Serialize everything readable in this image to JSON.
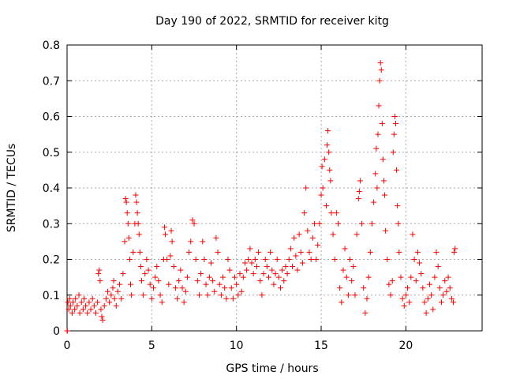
{
  "chart_data": {
    "type": "scatter",
    "title": "Day 190 of 2022, SRMTID for receiver kitg",
    "xlabel": "GPS time / hours",
    "ylabel": "SRMTID / TECUs",
    "xlim": [
      0,
      24.5
    ],
    "ylim": [
      0,
      0.8
    ],
    "xticks": [
      0,
      5,
      10,
      15,
      20
    ],
    "xtick_labels": [
      "0",
      "5",
      "10",
      "15",
      "20"
    ],
    "yticks": [
      0,
      0.1,
      0.2,
      0.3,
      0.4,
      0.5,
      0.6,
      0.7,
      0.8
    ],
    "ytick_labels": [
      "0",
      "0.1",
      "0.2",
      "0.3",
      "0.4",
      "0.5",
      "0.6",
      "0.7",
      "0.8"
    ],
    "grid": true,
    "marker": "+",
    "color": "#ff0000",
    "series": [
      {
        "name": "SRMTID",
        "points": [
          [
            0.0,
            0.0
          ],
          [
            0.02,
            0.0
          ],
          [
            0.05,
            0.08
          ],
          [
            0.1,
            0.06
          ],
          [
            0.15,
            0.09
          ],
          [
            0.2,
            0.07
          ],
          [
            0.3,
            0.05
          ],
          [
            0.35,
            0.08
          ],
          [
            0.45,
            0.06
          ],
          [
            0.5,
            0.09
          ],
          [
            0.6,
            0.07
          ],
          [
            0.7,
            0.1
          ],
          [
            0.75,
            0.05
          ],
          [
            0.85,
            0.08
          ],
          [
            0.95,
            0.06
          ],
          [
            1.0,
            0.09
          ],
          [
            1.1,
            0.07
          ],
          [
            1.2,
            0.05
          ],
          [
            1.3,
            0.08
          ],
          [
            1.4,
            0.06
          ],
          [
            1.5,
            0.09
          ],
          [
            1.6,
            0.07
          ],
          [
            1.7,
            0.05
          ],
          [
            1.8,
            0.08
          ],
          [
            1.85,
            0.16
          ],
          [
            1.9,
            0.17
          ],
          [
            1.95,
            0.14
          ],
          [
            2.0,
            0.06
          ],
          [
            2.05,
            0.04
          ],
          [
            2.1,
            0.03
          ],
          [
            2.2,
            0.07
          ],
          [
            2.3,
            0.09
          ],
          [
            2.4,
            0.11
          ],
          [
            2.5,
            0.08
          ],
          [
            2.6,
            0.1
          ],
          [
            2.7,
            0.12
          ],
          [
            2.75,
            0.14
          ],
          [
            2.8,
            0.09
          ],
          [
            2.9,
            0.07
          ],
          [
            3.0,
            0.11
          ],
          [
            3.1,
            0.13
          ],
          [
            3.2,
            0.09
          ],
          [
            3.3,
            0.16
          ],
          [
            3.4,
            0.25
          ],
          [
            3.45,
            0.37
          ],
          [
            3.5,
            0.36
          ],
          [
            3.55,
            0.33
          ],
          [
            3.6,
            0.3
          ],
          [
            3.65,
            0.26
          ],
          [
            3.7,
            0.2
          ],
          [
            3.75,
            0.13
          ],
          [
            3.8,
            0.1
          ],
          [
            3.9,
            0.22
          ],
          [
            4.0,
            0.3
          ],
          [
            4.05,
            0.38
          ],
          [
            4.1,
            0.36
          ],
          [
            4.15,
            0.33
          ],
          [
            4.2,
            0.3
          ],
          [
            4.25,
            0.27
          ],
          [
            4.3,
            0.22
          ],
          [
            4.35,
            0.18
          ],
          [
            4.4,
            0.14
          ],
          [
            4.5,
            0.1
          ],
          [
            4.6,
            0.16
          ],
          [
            4.7,
            0.2
          ],
          [
            4.8,
            0.17
          ],
          [
            4.9,
            0.13
          ],
          [
            5.0,
            0.09
          ],
          [
            5.1,
            0.12
          ],
          [
            5.2,
            0.15
          ],
          [
            5.3,
            0.18
          ],
          [
            5.4,
            0.14
          ],
          [
            5.5,
            0.1
          ],
          [
            5.6,
            0.08
          ],
          [
            5.7,
            0.2
          ],
          [
            5.75,
            0.29
          ],
          [
            5.8,
            0.27
          ],
          [
            5.9,
            0.2
          ],
          [
            6.0,
            0.13
          ],
          [
            6.1,
            0.21
          ],
          [
            6.15,
            0.28
          ],
          [
            6.2,
            0.25
          ],
          [
            6.3,
            0.18
          ],
          [
            6.4,
            0.12
          ],
          [
            6.5,
            0.09
          ],
          [
            6.6,
            0.14
          ],
          [
            6.7,
            0.17
          ],
          [
            6.8,
            0.12
          ],
          [
            6.9,
            0.08
          ],
          [
            7.0,
            0.11
          ],
          [
            7.1,
            0.15
          ],
          [
            7.2,
            0.22
          ],
          [
            7.3,
            0.25
          ],
          [
            7.4,
            0.31
          ],
          [
            7.5,
            0.3
          ],
          [
            7.6,
            0.2
          ],
          [
            7.7,
            0.14
          ],
          [
            7.8,
            0.1
          ],
          [
            7.9,
            0.16
          ],
          [
            8.0,
            0.25
          ],
          [
            8.1,
            0.2
          ],
          [
            8.2,
            0.13
          ],
          [
            8.3,
            0.1
          ],
          [
            8.4,
            0.15
          ],
          [
            8.5,
            0.19
          ],
          [
            8.6,
            0.14
          ],
          [
            8.7,
            0.11
          ],
          [
            8.8,
            0.26
          ],
          [
            8.9,
            0.22
          ],
          [
            9.0,
            0.13
          ],
          [
            9.1,
            0.1
          ],
          [
            9.2,
            0.15
          ],
          [
            9.3,
            0.12
          ],
          [
            9.4,
            0.09
          ],
          [
            9.5,
            0.2
          ],
          [
            9.6,
            0.17
          ],
          [
            9.7,
            0.12
          ],
          [
            9.8,
            0.09
          ],
          [
            9.9,
            0.15
          ],
          [
            10.0,
            0.13
          ],
          [
            10.1,
            0.1
          ],
          [
            10.2,
            0.16
          ],
          [
            10.3,
            0.11
          ],
          [
            10.4,
            0.15
          ],
          [
            10.5,
            0.19
          ],
          [
            10.6,
            0.17
          ],
          [
            10.7,
            0.2
          ],
          [
            10.8,
            0.23
          ],
          [
            10.9,
            0.19
          ],
          [
            11.0,
            0.16
          ],
          [
            11.1,
            0.2
          ],
          [
            11.2,
            0.18
          ],
          [
            11.3,
            0.22
          ],
          [
            11.4,
            0.14
          ],
          [
            11.5,
            0.1
          ],
          [
            11.6,
            0.16
          ],
          [
            11.7,
            0.2
          ],
          [
            11.8,
            0.18
          ],
          [
            11.9,
            0.15
          ],
          [
            12.0,
            0.22
          ],
          [
            12.1,
            0.17
          ],
          [
            12.2,
            0.13
          ],
          [
            12.3,
            0.16
          ],
          [
            12.4,
            0.2
          ],
          [
            12.5,
            0.15
          ],
          [
            12.6,
            0.12
          ],
          [
            12.7,
            0.17
          ],
          [
            12.8,
            0.14
          ],
          [
            12.9,
            0.18
          ],
          [
            13.0,
            0.16
          ],
          [
            13.1,
            0.2
          ],
          [
            13.2,
            0.23
          ],
          [
            13.3,
            0.18
          ],
          [
            13.4,
            0.26
          ],
          [
            13.5,
            0.21
          ],
          [
            13.6,
            0.17
          ],
          [
            13.7,
            0.27
          ],
          [
            13.8,
            0.22
          ],
          [
            13.9,
            0.19
          ],
          [
            14.0,
            0.33
          ],
          [
            14.1,
            0.4
          ],
          [
            14.2,
            0.28
          ],
          [
            14.3,
            0.22
          ],
          [
            14.4,
            0.2
          ],
          [
            14.5,
            0.26
          ],
          [
            14.6,
            0.3
          ],
          [
            14.7,
            0.2
          ],
          [
            14.8,
            0.24
          ],
          [
            14.9,
            0.3
          ],
          [
            15.0,
            0.38
          ],
          [
            15.05,
            0.46
          ],
          [
            15.1,
            0.4
          ],
          [
            15.2,
            0.48
          ],
          [
            15.3,
            0.35
          ],
          [
            15.35,
            0.52
          ],
          [
            15.4,
            0.56
          ],
          [
            15.45,
            0.5
          ],
          [
            15.5,
            0.45
          ],
          [
            15.55,
            0.42
          ],
          [
            15.6,
            0.33
          ],
          [
            15.7,
            0.27
          ],
          [
            15.8,
            0.2
          ],
          [
            15.9,
            0.33
          ],
          [
            16.0,
            0.3
          ],
          [
            16.1,
            0.12
          ],
          [
            16.2,
            0.08
          ],
          [
            16.3,
            0.17
          ],
          [
            16.4,
            0.23
          ],
          [
            16.5,
            0.15
          ],
          [
            16.6,
            0.1
          ],
          [
            16.7,
            0.2
          ],
          [
            16.8,
            0.14
          ],
          [
            16.9,
            0.18
          ],
          [
            17.0,
            0.1
          ],
          [
            17.1,
            0.27
          ],
          [
            17.2,
            0.37
          ],
          [
            17.25,
            0.39
          ],
          [
            17.3,
            0.42
          ],
          [
            17.4,
            0.3
          ],
          [
            17.5,
            0.12
          ],
          [
            17.6,
            0.05
          ],
          [
            17.7,
            0.09
          ],
          [
            17.8,
            0.15
          ],
          [
            17.9,
            0.22
          ],
          [
            18.0,
            0.3
          ],
          [
            18.1,
            0.36
          ],
          [
            18.2,
            0.44
          ],
          [
            18.25,
            0.51
          ],
          [
            18.3,
            0.4
          ],
          [
            18.35,
            0.55
          ],
          [
            18.4,
            0.63
          ],
          [
            18.45,
            0.7
          ],
          [
            18.5,
            0.75
          ],
          [
            18.55,
            0.73
          ],
          [
            18.6,
            0.58
          ],
          [
            18.65,
            0.48
          ],
          [
            18.7,
            0.42
          ],
          [
            18.75,
            0.38
          ],
          [
            18.8,
            0.28
          ],
          [
            18.9,
            0.2
          ],
          [
            19.0,
            0.13
          ],
          [
            19.1,
            0.1
          ],
          [
            19.2,
            0.14
          ],
          [
            19.25,
            0.5
          ],
          [
            19.3,
            0.55
          ],
          [
            19.35,
            0.6
          ],
          [
            19.4,
            0.58
          ],
          [
            19.45,
            0.45
          ],
          [
            19.5,
            0.35
          ],
          [
            19.55,
            0.3
          ],
          [
            19.6,
            0.22
          ],
          [
            19.7,
            0.15
          ],
          [
            19.8,
            0.09
          ],
          [
            19.9,
            0.07
          ],
          [
            20.0,
            0.1
          ],
          [
            20.1,
            0.12
          ],
          [
            20.2,
            0.08
          ],
          [
            20.3,
            0.15
          ],
          [
            20.4,
            0.27
          ],
          [
            20.5,
            0.2
          ],
          [
            20.6,
            0.14
          ],
          [
            20.7,
            0.22
          ],
          [
            20.8,
            0.19
          ],
          [
            20.9,
            0.16
          ],
          [
            21.0,
            0.12
          ],
          [
            21.1,
            0.08
          ],
          [
            21.2,
            0.05
          ],
          [
            21.3,
            0.09
          ],
          [
            21.4,
            0.13
          ],
          [
            21.5,
            0.1
          ],
          [
            21.6,
            0.06
          ],
          [
            21.7,
            0.15
          ],
          [
            21.8,
            0.22
          ],
          [
            21.9,
            0.18
          ],
          [
            22.0,
            0.12
          ],
          [
            22.1,
            0.08
          ],
          [
            22.2,
            0.1
          ],
          [
            22.3,
            0.14
          ],
          [
            22.4,
            0.11
          ],
          [
            22.5,
            0.15
          ],
          [
            22.6,
            0.12
          ],
          [
            22.7,
            0.09
          ],
          [
            22.8,
            0.08
          ],
          [
            22.85,
            0.22
          ],
          [
            22.9,
            0.23
          ]
        ]
      }
    ]
  }
}
